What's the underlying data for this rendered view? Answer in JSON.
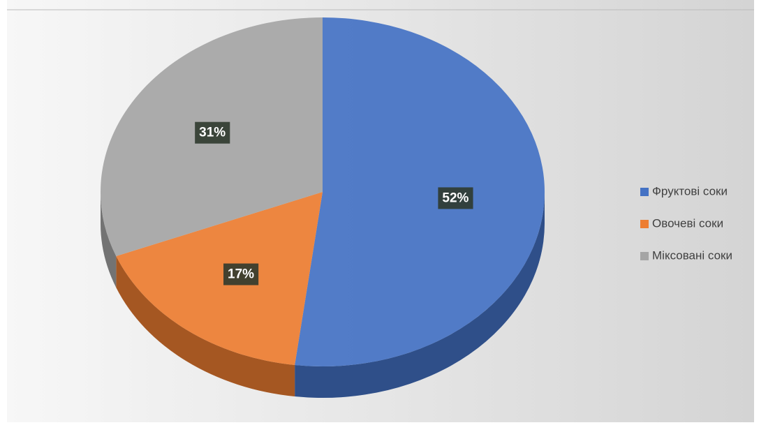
{
  "chart_data": {
    "type": "pie3d",
    "categories": [
      "Фруктові соки",
      "Овочеві соки",
      "Міксовані соки"
    ],
    "values": [
      52,
      17,
      31
    ],
    "value_labels": [
      "52%",
      "17%",
      "31%"
    ],
    "colors": [
      "#4472c4",
      "#ed7d31",
      "#a5a5a5"
    ],
    "legend": "right"
  }
}
